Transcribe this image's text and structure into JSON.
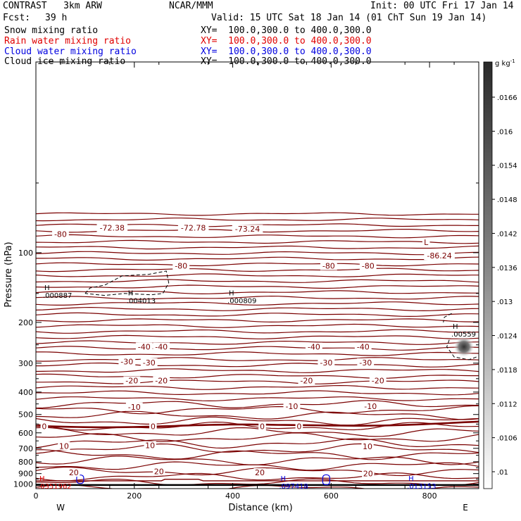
{
  "header": {
    "model": "CONTRAST   3km ARW",
    "org": "NCAR/MMM",
    "init": "Init: 00 UTC Fri 17 Jan 14",
    "fcst_label": "Fcst:",
    "fcst_value": "39 h",
    "valid": "Valid: 15 UTC Sat 18 Jan 14 (01 ChT Sun 19 Jan 14)"
  },
  "fields": [
    {
      "name": "Snow mixing ratio",
      "xy": "XY=  100.0,300.0 to 400.0,300.0",
      "color": "#000000"
    },
    {
      "name": "Rain water mixing ratio",
      "xy": "XY=  100.0,300.0 to 400.0,300.0",
      "color": "#e00000"
    },
    {
      "name": "Cloud water mixing ratio",
      "xy": "XY=  100.0,300.0 to 400.0,300.0",
      "color": "#0000e0"
    },
    {
      "name": "Cloud ice mixing ratio",
      "xy": "XY=  100.0,300.0 to 400.0,300.0",
      "color": "#000000"
    }
  ],
  "colors": {
    "contour": "#7a0000",
    "cloud_water": "#0000e0",
    "rain": "#e00000",
    "snow": "#000000"
  },
  "chart_data": {
    "type": "contour-cross-section",
    "xlabel": "Distance (km)",
    "ylabel": "Pressure (hPa)",
    "xlim": [
      0,
      900
    ],
    "ylim": [
      1045,
      15
    ],
    "yscale": "log",
    "xticks": [
      0,
      200,
      400,
      600,
      800
    ],
    "yticks": [
      100,
      200,
      300,
      400,
      500,
      600,
      700,
      800,
      900,
      1000
    ],
    "x_end_labels": {
      "left": "W",
      "right": "E"
    },
    "colorbar": {
      "unit": "g kg",
      "unit_exp": "-1",
      "ticks": [
        ".0166",
        ".016",
        ".0154",
        ".0148",
        ".0142",
        ".0136",
        ".013",
        ".0124",
        ".0118",
        ".0112",
        ".0106",
        ".01"
      ],
      "max_value": 0.0166,
      "min_value": 0.01
    },
    "temperature_contours": {
      "interval": 2,
      "levels_labelled": [
        -80,
        -40,
        -30,
        -20,
        -10,
        0,
        10,
        20
      ],
      "labels": [
        {
          "text": "-80",
          "x": 50,
          "p": 83
        },
        {
          "text": "-72.38",
          "x": 155,
          "p": 78
        },
        {
          "text": "-72.78",
          "x": 320,
          "p": 78
        },
        {
          "text": "-73.24",
          "x": 430,
          "p": 79
        },
        {
          "text": "-80",
          "x": 295,
          "p": 114
        },
        {
          "text": "-80",
          "x": 595,
          "p": 114
        },
        {
          "text": "-80",
          "x": 675,
          "p": 114
        },
        {
          "text": "L",
          "x": 793,
          "p": 90
        },
        {
          "text": "-86.24",
          "x": 820,
          "p": 103
        },
        {
          "text": "-40",
          "x": 220,
          "p": 255
        },
        {
          "text": "-40",
          "x": 255,
          "p": 255
        },
        {
          "text": "-40",
          "x": 565,
          "p": 255
        },
        {
          "text": "-40",
          "x": 665,
          "p": 255
        },
        {
          "text": "-30",
          "x": 185,
          "p": 295
        },
        {
          "text": "-30",
          "x": 230,
          "p": 298
        },
        {
          "text": "-30",
          "x": 590,
          "p": 298
        },
        {
          "text": "-30",
          "x": 670,
          "p": 298
        },
        {
          "text": "-20",
          "x": 195,
          "p": 357
        },
        {
          "text": "-20",
          "x": 255,
          "p": 357
        },
        {
          "text": "-20",
          "x": 550,
          "p": 357
        },
        {
          "text": "-20",
          "x": 695,
          "p": 357
        },
        {
          "text": "-10",
          "x": 200,
          "p": 463
        },
        {
          "text": "-10",
          "x": 520,
          "p": 460
        },
        {
          "text": "-10",
          "x": 680,
          "p": 460
        },
        {
          "text": "0",
          "x": 17,
          "p": 563
        },
        {
          "text": "0",
          "x": 238,
          "p": 563
        },
        {
          "text": "0",
          "x": 460,
          "p": 563
        },
        {
          "text": "0",
          "x": 535,
          "p": 563
        },
        {
          "text": "10",
          "x": 57,
          "p": 683
        },
        {
          "text": "10",
          "x": 232,
          "p": 680
        },
        {
          "text": "10",
          "x": 674,
          "p": 686
        },
        {
          "text": "20",
          "x": 77,
          "p": 890
        },
        {
          "text": "20",
          "x": 250,
          "p": 880
        },
        {
          "text": "20",
          "x": 455,
          "p": 890
        },
        {
          "text": "20",
          "x": 675,
          "p": 900
        }
      ]
    },
    "extrema": [
      {
        "type": "H",
        "value": ".000887",
        "x": 20,
        "p": 145,
        "color": "#000000"
      },
      {
        "type": "H",
        "value": ".004013",
        "x": 190,
        "p": 153,
        "color": "#000000"
      },
      {
        "type": "H",
        "value": ".000809",
        "x": 395,
        "p": 153,
        "color": "#000000"
      },
      {
        "type": "H",
        "value": ".00559",
        "x": 850,
        "p": 213,
        "color": "#000000"
      },
      {
        "type": "H",
        "value": ".097418",
        "x": 500,
        "p": 967,
        "color": "#0000e0"
      },
      {
        "type": "H",
        "value": ".013153",
        "x": 760,
        "p": 967,
        "color": "#0000e0"
      },
      {
        "type": "H",
        "value": ".0351962",
        "x": 10,
        "p": 967,
        "color": "#e00000"
      }
    ],
    "shaded_maximum": {
      "x": 870,
      "p": 255,
      "value": 0.0166
    }
  }
}
